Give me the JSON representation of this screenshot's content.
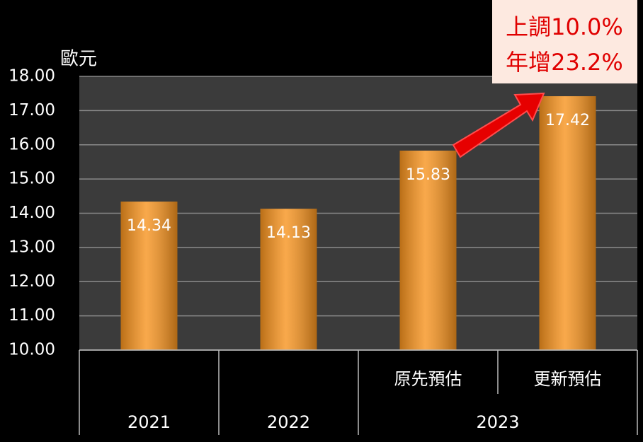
{
  "chart_data": {
    "type": "bar",
    "y_unit": "歐元",
    "categories": [
      null,
      null,
      "原先預估",
      "更新預估"
    ],
    "groups": [
      "2021",
      "2022",
      "2023"
    ],
    "values": [
      14.34,
      14.13,
      15.83,
      17.42
    ],
    "color": "#f7931e",
    "ylim": [
      10,
      18
    ],
    "yticks": [
      {
        "value": 10,
        "label": "10.00"
      },
      {
        "value": 11,
        "label": "11.00"
      },
      {
        "value": 12,
        "label": "12.00"
      },
      {
        "value": 13,
        "label": "13.00"
      },
      {
        "value": 14,
        "label": "14.00"
      },
      {
        "value": 15,
        "label": "15.00"
      },
      {
        "value": 16,
        "label": "16.00"
      },
      {
        "value": 17,
        "label": "17.00"
      },
      {
        "value": 18,
        "label": "18.00"
      }
    ],
    "grid": true,
    "annotations": [
      "上調10.0%",
      "年增23.2%"
    ]
  }
}
